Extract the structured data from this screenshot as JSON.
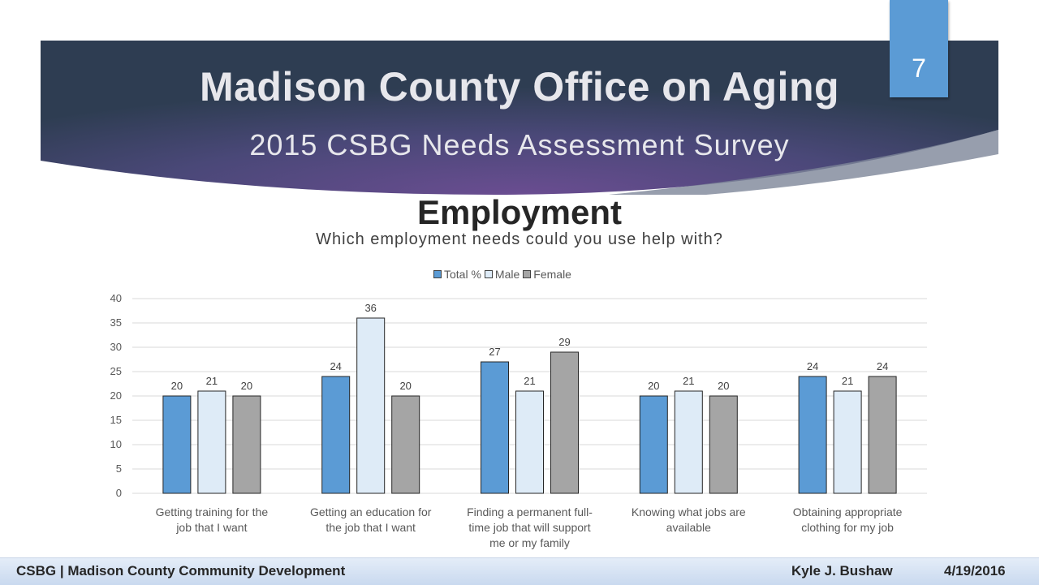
{
  "slide": {
    "title": "Madison County Office on Aging",
    "subtitle": "2015 CSBG Needs Assessment Survey",
    "number": "7",
    "section_title": "Employment",
    "question": "Which employment needs could you use help with?"
  },
  "footer": {
    "left": "CSBG | Madison County Community Development",
    "author": "Kyle J. Bushaw",
    "date": "4/19/2016"
  },
  "colors": {
    "banner_dark": "#2e3d52",
    "banner_purple": "#6a4d91",
    "accent_blue": "#5b9bd5",
    "male": "#deebf7",
    "female": "#a5a5a5"
  },
  "chart_data": {
    "type": "bar",
    "categories": [
      [
        "Getting training for the",
        "job that I want"
      ],
      [
        "Getting an education for",
        "the job that I want"
      ],
      [
        "Finding a permanent full-",
        "time job that will support",
        "me or my family"
      ],
      [
        "Knowing what jobs are",
        "available"
      ],
      [
        "Obtaining appropriate",
        "clothing for my job"
      ]
    ],
    "series": [
      {
        "name": "Total %",
        "color": "#5b9bd5",
        "values": [
          20,
          24,
          27,
          20,
          24
        ]
      },
      {
        "name": "Male",
        "color": "#deebf7",
        "values": [
          21,
          36,
          21,
          21,
          21
        ]
      },
      {
        "name": "Female",
        "color": "#a5a5a5",
        "values": [
          20,
          20,
          29,
          20,
          24
        ]
      }
    ],
    "ylim": [
      0,
      40
    ],
    "yticks": [
      0,
      5,
      10,
      15,
      20,
      25,
      30,
      35,
      40
    ],
    "grid": true,
    "legend": "top",
    "data_labels": true
  }
}
